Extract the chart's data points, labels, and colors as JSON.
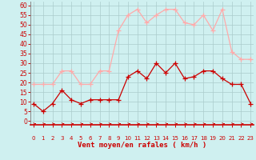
{
  "hours": [
    0,
    1,
    2,
    3,
    4,
    5,
    6,
    7,
    8,
    9,
    10,
    11,
    12,
    13,
    14,
    15,
    16,
    17,
    18,
    19,
    20,
    21,
    22,
    23
  ],
  "wind_avg": [
    9,
    5,
    9,
    16,
    11,
    9,
    11,
    11,
    11,
    11,
    23,
    26,
    22,
    30,
    25,
    30,
    22,
    23,
    26,
    26,
    22,
    19,
    19,
    9
  ],
  "wind_gust": [
    19,
    19,
    19,
    26,
    26,
    19,
    19,
    26,
    26,
    47,
    55,
    58,
    51,
    55,
    58,
    58,
    51,
    50,
    55,
    47,
    58,
    36,
    32,
    32
  ],
  "bg_color": "#cff0f0",
  "avg_color": "#cc0000",
  "gust_color": "#ffaaaa",
  "xlabel": "Vent moyen/en rafales ( km/h )",
  "xlabel_color": "#cc0000",
  "ylabel_ticks": [
    0,
    5,
    10,
    15,
    20,
    25,
    30,
    35,
    40,
    45,
    50,
    55,
    60
  ],
  "ylim": [
    -2,
    62
  ],
  "xlim": [
    -0.3,
    23.3
  ],
  "grid_color": "#aacccc",
  "tick_color": "#cc0000",
  "spine_color": "#888888",
  "axis_line_color": "#cc0000"
}
